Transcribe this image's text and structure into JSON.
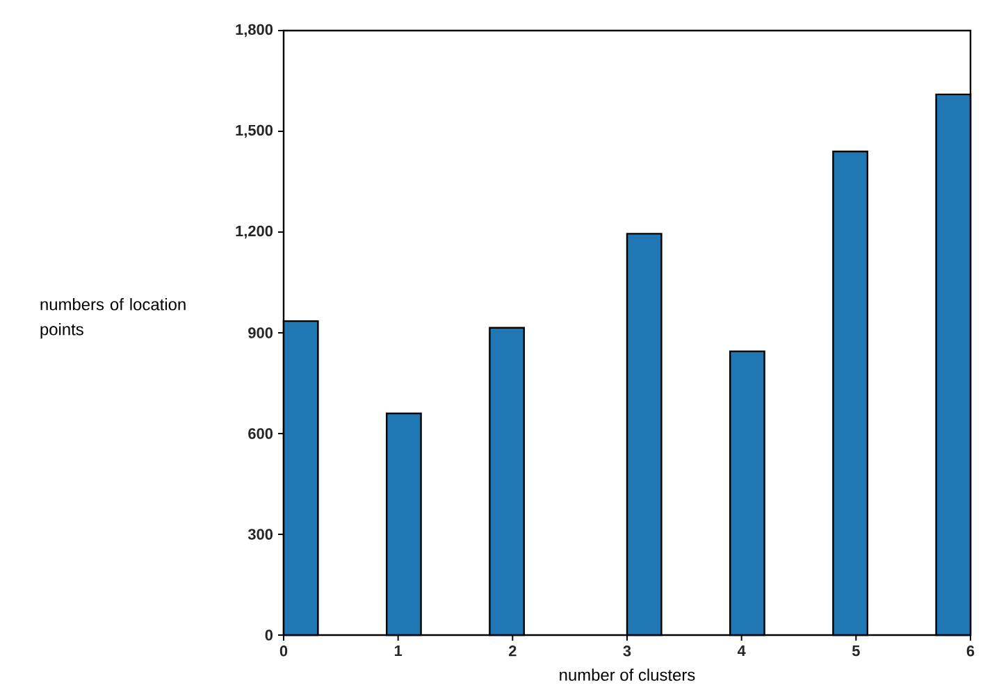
{
  "chart_data": {
    "type": "histogram",
    "bins": [
      0,
      0.3,
      0.6,
      0.9,
      1.2,
      1.5,
      1.8,
      2.1,
      2.4,
      2.7,
      3,
      3.3,
      3.6,
      3.9,
      4.2,
      4.5,
      4.8,
      5.1,
      5.4,
      5.7,
      6
    ],
    "values": [
      935,
      0,
      0,
      660,
      0,
      0,
      915,
      0,
      0,
      0,
      1195,
      0,
      0,
      845,
      0,
      0,
      1440,
      0,
      0,
      1610
    ],
    "color": "#1f77b4",
    "xlabel": "number of clusters",
    "ylabel": "numbers of location points",
    "xlim": [
      0,
      6
    ],
    "ylim": [
      0,
      1800
    ],
    "xticks": [
      0,
      1,
      2,
      3,
      4,
      5,
      6
    ],
    "yticks": [
      0,
      300,
      600,
      900,
      {
        "value": 1200,
        "label": "1,200"
      },
      {
        "value": 1500,
        "label": "1,500"
      },
      {
        "value": 1800,
        "label": "1,800"
      }
    ],
    "grid": false
  }
}
